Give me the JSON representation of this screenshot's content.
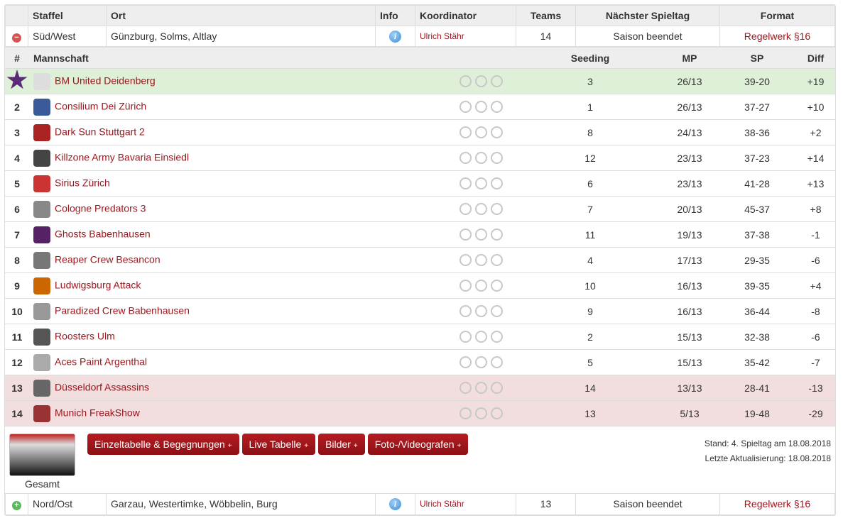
{
  "header": {
    "staffel": "Staffel",
    "ort": "Ort",
    "info": "Info",
    "koordinator": "Koordinator",
    "teams": "Teams",
    "next": "Nächster Spieltag",
    "format": "Format"
  },
  "divisions": [
    {
      "staffel": "Süd/West",
      "ort": "Günzburg, Solms, Altlay",
      "koordinator": "Ulrich Stähr",
      "teams": "14",
      "next": "Saison beendet",
      "format": "Regelwerk §16",
      "expanded": true
    },
    {
      "staffel": "Nord/Ost",
      "ort": "Garzau, Westertimke, Wöbbelin, Burg",
      "koordinator": "Ulrich Stähr",
      "teams": "13",
      "next": "Saison beendet",
      "format": "Regelwerk §16",
      "expanded": false
    }
  ],
  "table_header": {
    "rank": "#",
    "team": "Mannschaft",
    "seeding": "Seeding",
    "mp": "MP",
    "sp": "SP",
    "diff": "Diff"
  },
  "teams": [
    {
      "rank": "1",
      "name": "BM United Deidenberg",
      "seeding": "3",
      "mp": "26/13",
      "sp": "39-20",
      "diff": "+19",
      "status": "champion"
    },
    {
      "rank": "2",
      "name": "Consilium Dei Zürich",
      "seeding": "1",
      "mp": "26/13",
      "sp": "37-27",
      "diff": "+10"
    },
    {
      "rank": "3",
      "name": "Dark Sun Stuttgart 2",
      "seeding": "8",
      "mp": "24/13",
      "sp": "38-36",
      "diff": "+2"
    },
    {
      "rank": "4",
      "name": "Killzone Army Bavaria Einsiedl",
      "seeding": "12",
      "mp": "23/13",
      "sp": "37-23",
      "diff": "+14"
    },
    {
      "rank": "5",
      "name": "Sirius Zürich",
      "seeding": "6",
      "mp": "23/13",
      "sp": "41-28",
      "diff": "+13"
    },
    {
      "rank": "6",
      "name": "Cologne Predators 3",
      "seeding": "7",
      "mp": "20/13",
      "sp": "45-37",
      "diff": "+8"
    },
    {
      "rank": "7",
      "name": "Ghosts Babenhausen",
      "seeding": "11",
      "mp": "19/13",
      "sp": "37-38",
      "diff": "-1"
    },
    {
      "rank": "8",
      "name": "Reaper Crew Besancon",
      "seeding": "4",
      "mp": "17/13",
      "sp": "29-35",
      "diff": "-6"
    },
    {
      "rank": "9",
      "name": "Ludwigsburg Attack",
      "seeding": "10",
      "mp": "16/13",
      "sp": "39-35",
      "diff": "+4"
    },
    {
      "rank": "10",
      "name": "Paradized Crew Babenhausen",
      "seeding": "9",
      "mp": "16/13",
      "sp": "36-44",
      "diff": "-8"
    },
    {
      "rank": "11",
      "name": "Roosters Ulm",
      "seeding": "2",
      "mp": "15/13",
      "sp": "32-38",
      "diff": "-6"
    },
    {
      "rank": "12",
      "name": "Aces Paint Argenthal",
      "seeding": "5",
      "mp": "15/13",
      "sp": "35-42",
      "diff": "-7"
    },
    {
      "rank": "13",
      "name": "Düsseldorf Assassins",
      "seeding": "14",
      "mp": "13/13",
      "sp": "28-41",
      "diff": "-13",
      "status": "relegation"
    },
    {
      "rank": "14",
      "name": "Munich FreakShow",
      "seeding": "13",
      "mp": "5/13",
      "sp": "19-48",
      "diff": "-29",
      "status": "relegation"
    }
  ],
  "footer": {
    "thumb_label": "Gesamt",
    "buttons": [
      "Einzeltabelle & Begegnungen",
      "Live Tabelle",
      "Bilder",
      "Foto-/Videografen"
    ],
    "plus": "+",
    "stand": "Stand: 4. Spieltag am 18.08.2018",
    "update": "Letzte Aktualisierung: 18.08.2018"
  },
  "colors": {
    "link": "#a0161d",
    "champion_row": "#dff0d8",
    "relegation_row": "#f2dede",
    "button": "#a0161d"
  }
}
